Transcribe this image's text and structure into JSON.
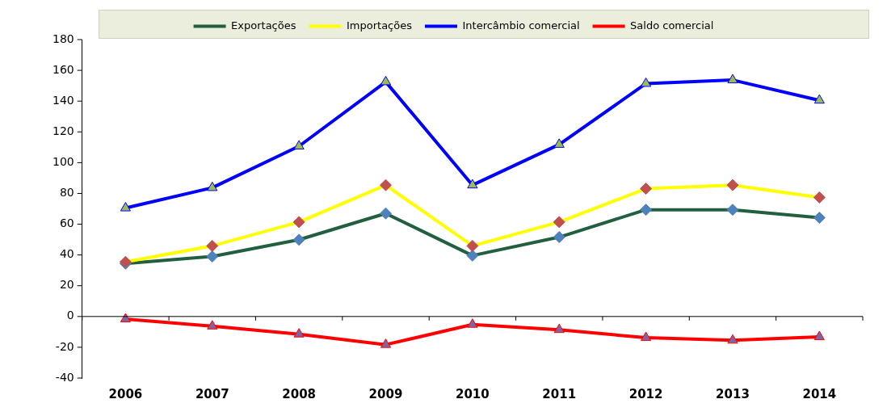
{
  "chart_data": {
    "type": "line",
    "categories": [
      "2006",
      "2007",
      "2008",
      "2009",
      "2010",
      "2011",
      "2012",
      "2013",
      "2014"
    ],
    "series": [
      {
        "name": "Exportações",
        "color": "#215f3f",
        "marker": "diamond",
        "colors": [
          "#4f81bd",
          "#4f81bd",
          "#4f81bd",
          "#4f81bd",
          "#4f81bd",
          "#4f81bd",
          "#4f81bd",
          "#4f81bd",
          "#4f81bd"
        ],
        "values": [
          34.4,
          39,
          49.9,
          67,
          39.6,
          51.6,
          69.4,
          69.4,
          64.2
        ]
      },
      {
        "name": "Importações",
        "color": "#ffff00",
        "marker": "diamond",
        "colors": [
          "#c0504d",
          "#c0504d",
          "#c0504d",
          "#c0504d",
          "#c0504d",
          "#c0504d",
          "#c0504d",
          "#c0504d",
          "#c0504d"
        ],
        "values": [
          35.5,
          45.9,
          61.4,
          85.4,
          45.9,
          61.4,
          83.1,
          85.4,
          77.4
        ]
      },
      {
        "name": "Intercâmbio comercial",
        "color": "#0000ff",
        "marker": "triangle",
        "colors": [
          "#9bbb59",
          "#9bbb59",
          "#9bbb59",
          "#9bbb59",
          "#9bbb59",
          "#9bbb59",
          "#9bbb59",
          "#9bbb59",
          "#9bbb59"
        ],
        "values": [
          70.5,
          83.7,
          110.7,
          152.5,
          85.4,
          111.8,
          151.4,
          153.7,
          140.5
        ]
      },
      {
        "name": "Saldo comercial",
        "color": "#ff0000",
        "marker": "triangle",
        "colors": [
          "#8064a2",
          "#8064a2",
          "#8064a2",
          "#8064a2",
          "#8064a2",
          "#8064a2",
          "#8064a2",
          "#8064a2",
          "#8064a2"
        ],
        "values": [
          -1.7,
          -6.3,
          -11.5,
          -18.3,
          -5.2,
          -8.6,
          -13.8,
          -15.5,
          -13.2
        ]
      }
    ],
    "ylim": [
      -40,
      180
    ],
    "yticks": [
      -40,
      -20,
      0,
      20,
      40,
      60,
      80,
      100,
      120,
      140,
      160,
      180
    ],
    "ref_lines": [
      {
        "axis": "y",
        "value": 0,
        "color": "#000000",
        "line_style": "solid"
      }
    ],
    "grid": false,
    "legend": "top",
    "line_style": "solid"
  }
}
